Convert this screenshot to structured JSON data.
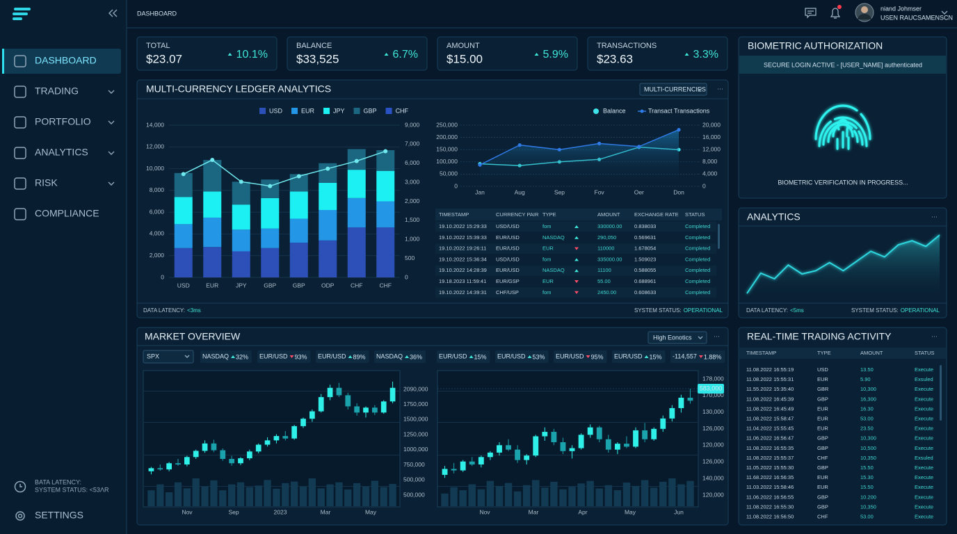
{
  "sidebar": {
    "nav": [
      {
        "label": "DASHBOARD",
        "active": true
      },
      {
        "label": "TRADING",
        "expandable": true
      },
      {
        "label": "PORTFOLIO",
        "expandable": true
      },
      {
        "label": "ANALYTICS",
        "expandable": true
      },
      {
        "label": "RISK",
        "expandable": true
      },
      {
        "label": "COMPLIANCE"
      }
    ],
    "status": [
      "BATA LATENCY:",
      "SYSTEM STATUS: <53ΛR"
    ],
    "settings": "SETTINGS"
  },
  "header": {
    "title": "DASHBOARD",
    "user_name": "niand Johmser",
    "user_role": "USEN RAUCSAMENSCN"
  },
  "kpis": [
    {
      "label": "TOTAL",
      "value": "$23.07",
      "change": "10.1%"
    },
    {
      "label": "BALANCE",
      "value": "$33,525",
      "change": "6.7%"
    },
    {
      "label": "AMOUNT",
      "value": "$15.00",
      "change": "5.9%"
    },
    {
      "label": "TRANSACTIONS",
      "value": "$23.63",
      "change": "3.3%"
    }
  ],
  "ledger": {
    "title": "MULTI-CURRENCY LEDGER ANALYTICS",
    "dropdown": "MULTI-CURRENCIES",
    "bar_chart": {
      "type": "bar",
      "stacked": true,
      "categories": [
        "USD",
        "EUR",
        "JPY",
        "GBP",
        "GBP",
        "ODP",
        "CHF",
        "CHF"
      ],
      "series": [
        {
          "name": "USD",
          "color": "#2c50b8",
          "values": [
            2700,
            2800,
            2400,
            2700,
            3200,
            3400,
            4600,
            4600
          ]
        },
        {
          "name": "EUR",
          "color": "#2496e6",
          "values": [
            2200,
            2700,
            2000,
            1800,
            2200,
            2800,
            2700,
            2400
          ]
        },
        {
          "name": "JPY",
          "color": "#1cf0f2",
          "values": [
            2500,
            2400,
            2300,
            2800,
            2500,
            2500,
            2600,
            2800
          ]
        },
        {
          "name": "GBP",
          "color": "#1b6680",
          "values": [
            2200,
            2900,
            2100,
            1700,
            1600,
            1800,
            1900,
            1900
          ]
        },
        {
          "name": "CHF",
          "color": "#2a52c4",
          "values": [
            null,
            null,
            null,
            null,
            null,
            null,
            null,
            null
          ]
        }
      ],
      "ylim": [
        0,
        14000
      ],
      "yticks": [
        0,
        {
          "value": 2000,
          "label": "2,000"
        },
        {
          "value": 4000,
          "label": "4,000"
        },
        {
          "value": 6000,
          "label": "6,000"
        },
        {
          "value": 8000,
          "label": "8,000"
        },
        {
          "value": 10000,
          "label": "10,000"
        },
        {
          "value": 12000,
          "label": "12,000"
        },
        {
          "value": 14000,
          "label": "14,000"
        }
      ],
      "y2_labels": [
        "9,000",
        "7,000",
        "6,000",
        "3,000",
        "2,000",
        "1,500",
        "1,000",
        "500",
        "0"
      ],
      "line": {
        "color": "#6fe9ee",
        "values": [
          9500,
          10800,
          8800,
          8400,
          9300,
          10000,
          10700,
          11600
        ]
      }
    },
    "line_chart": {
      "type": "line",
      "x": [
        "Jan",
        "Aug",
        "Sep",
        "Fov",
        "Oer",
        "Don"
      ],
      "series": [
        {
          "name": "Balance",
          "color": "#3fe3ea",
          "values": [
            92000,
            85000,
            100000,
            110000,
            160000,
            150000
          ]
        },
        {
          "name": "Transact Transactions",
          "color": "#2f7ae6",
          "axis": "y2",
          "values": [
            7000,
            13500,
            12000,
            14000,
            13000,
            18500
          ]
        }
      ],
      "ylim": [
        0,
        250000
      ],
      "yticks": [
        0,
        {
          "value": 50000,
          "label": "50,000"
        },
        {
          "value": 100000,
          "label": "100,000"
        },
        {
          "value": 150000,
          "label": "150,000"
        },
        {
          "value": 200000,
          "label": "200,000"
        },
        {
          "value": 250000,
          "label": "250,000"
        }
      ],
      "y2lim": [
        0,
        20000
      ],
      "y2ticks": [
        0,
        {
          "value": 4000,
          "label": "4,000"
        },
        {
          "value": 8000,
          "label": "8,000"
        },
        {
          "value": 12000,
          "label": "12,000"
        },
        {
          "value": 16000,
          "label": "16,000"
        },
        {
          "value": 20000,
          "label": "20,000"
        }
      ]
    },
    "table": {
      "columns": [
        "TIMESTAMP",
        "CURRENCY PAIR",
        "TYPE",
        "AMOUNT",
        "EXCHANGE RATE",
        "STATUS"
      ],
      "rows": [
        [
          "19.10.2022 15:29:33",
          "USD/USD",
          "fom",
          "330000.00",
          "0.838033",
          "Completed"
        ],
        [
          "19.10.2022 15:39:33",
          "EUR/USD",
          "NASDAQ",
          "290,050",
          "0.569631",
          "Completed"
        ],
        [
          "19.10.2022 19:26:11",
          "EUR/USD",
          "EUR",
          "110000",
          "1.678054",
          "Completed"
        ],
        [
          "19.10.2022 15:36:34",
          "USD/USD",
          "fom",
          "335000.00",
          "1.509023",
          "Completed"
        ],
        [
          "19.10.2022 14:28:39",
          "EUR/USD",
          "NASDAQ",
          "11100",
          "0.588055",
          "Completed"
        ],
        [
          "19.18.2023 11:59:41",
          "EUR/GSP",
          "EUR",
          "55.00",
          "0.688961",
          "Completed"
        ],
        [
          "19.10.2022 14:39:31",
          "CHF/USP",
          "fom",
          "2450.00",
          "0.608633",
          "Completed"
        ]
      ],
      "directions": [
        "up",
        "up",
        "down",
        "up",
        "up",
        "down",
        "down"
      ]
    },
    "footer": {
      "latency_label": "DATA LATENCY:",
      "latency": "<3ms",
      "status_label": "SYSTEM STATUS:",
      "status": "OPERATIONAL"
    }
  },
  "biometric": {
    "title": "BIOMETRIC AUTHORIZATION",
    "banner": "SECURE LOGIN ACTIVE - [USER_NAME] authenticated",
    "status": "BIOMETRIC VERIFICATION IN PROGRESS..."
  },
  "analytics": {
    "title": "ANALYTICS",
    "chart": {
      "type": "area",
      "color": "#2fd8e0",
      "values": [
        10,
        35,
        28,
        45,
        34,
        38,
        48,
        38,
        50,
        62,
        55,
        70,
        75,
        68,
        82
      ]
    },
    "footer": {
      "latency_label": "DATA LATENCY:",
      "latency": "<5ms",
      "status_label": "SYSTEM STATUS:",
      "status": "OPERATIONAL"
    }
  },
  "market": {
    "title": "MARKET OVERVIEW",
    "dropdown": "High Eonotics",
    "selector": "SPX",
    "tickers": [
      {
        "name": "NASDAQ",
        "change": "32%",
        "dir": "up"
      },
      {
        "name": "EUR/USD",
        "change": "93%",
        "dir": "down"
      },
      {
        "name": "EUR/USD",
        "change": "89%",
        "dir": "up"
      },
      {
        "name": "NASDAQ",
        "change": "36%",
        "dir": "up"
      },
      {
        "name": "EUR/USD",
        "change": "15%",
        "dir": "up"
      },
      {
        "name": "EUR/USD",
        "change": "53%",
        "dir": "up"
      },
      {
        "name": "EUR/USD",
        "change": "95%",
        "dir": "down"
      },
      {
        "name": "EUR/USD",
        "change": "15%",
        "dir": "up"
      },
      {
        "name": "-114,557",
        "change": "1.88%",
        "dir": "down"
      }
    ],
    "charts": [
      {
        "type": "candlestick",
        "ylim": [
          400000,
          2200000
        ],
        "y_labels": [
          "2090,000",
          "1750,000",
          "1500,000",
          "1250,000",
          "1000,000",
          "750,000",
          "500,000",
          "500,000"
        ],
        "x_labels": [
          "Nov",
          "Sep",
          "2023",
          "Mar",
          "May"
        ],
        "ohlc": [
          [
            650000,
            720000,
            600000,
            700000
          ],
          [
            700000,
            760000,
            660000,
            680000
          ],
          [
            680000,
            800000,
            650000,
            780000
          ],
          [
            780000,
            850000,
            740000,
            760000
          ],
          [
            760000,
            900000,
            730000,
            880000
          ],
          [
            880000,
            1000000,
            850000,
            980000
          ],
          [
            980000,
            1150000,
            950000,
            1100000
          ],
          [
            1100000,
            1160000,
            960000,
            990000
          ],
          [
            990000,
            1020000,
            820000,
            850000
          ],
          [
            850000,
            900000,
            740000,
            780000
          ],
          [
            780000,
            880000,
            750000,
            860000
          ],
          [
            860000,
            1000000,
            830000,
            970000
          ],
          [
            970000,
            1100000,
            940000,
            1080000
          ],
          [
            1080000,
            1200000,
            1050000,
            1150000
          ],
          [
            1150000,
            1250000,
            1100000,
            1220000
          ],
          [
            1220000,
            1300000,
            1150000,
            1180000
          ],
          [
            1180000,
            1400000,
            1160000,
            1380000
          ],
          [
            1380000,
            1520000,
            1350000,
            1500000
          ],
          [
            1500000,
            1650000,
            1450000,
            1620000
          ],
          [
            1620000,
            1900000,
            1600000,
            1850000
          ],
          [
            1850000,
            2050000,
            1800000,
            2000000
          ],
          [
            2000000,
            2080000,
            1850000,
            1880000
          ],
          [
            1880000,
            1920000,
            1650000,
            1700000
          ],
          [
            1700000,
            1750000,
            1550000,
            1600000
          ],
          [
            1600000,
            1700000,
            1520000,
            1680000
          ],
          [
            1680000,
            1720000,
            1560000,
            1600000
          ],
          [
            1600000,
            1800000,
            1580000,
            1780000
          ],
          [
            1780000,
            2100000,
            1750000,
            2000000
          ]
        ],
        "volumes": [
          40,
          55,
          35,
          60,
          45,
          70,
          50,
          65,
          40,
          55,
          60,
          48,
          52,
          66,
          44,
          58,
          62,
          50,
          70,
          45,
          55,
          60,
          42,
          58,
          50,
          64,
          48,
          56
        ]
      },
      {
        "type": "candlestick",
        "ylim": [
          110000,
          185000
        ],
        "y_labels": [
          "178,000",
          "170,000",
          "130,000",
          "126,000",
          "120,000",
          "126,000",
          "140,000",
          "120,000"
        ],
        "x_labels": [
          "Nov",
          "Mar",
          "Apr",
          "May",
          "Jun"
        ],
        "price_tag": "583,000",
        "ohlc": [
          [
            118000,
            124000,
            116000,
            122000
          ],
          [
            122000,
            126000,
            119000,
            121000
          ],
          [
            121000,
            128000,
            120000,
            127000
          ],
          [
            127000,
            130000,
            124000,
            125000
          ],
          [
            125000,
            131000,
            123000,
            130000
          ],
          [
            130000,
            134000,
            128000,
            133000
          ],
          [
            133000,
            140000,
            131000,
            138000
          ],
          [
            138000,
            142000,
            134000,
            135000
          ],
          [
            135000,
            138000,
            126000,
            128000
          ],
          [
            128000,
            132000,
            125000,
            131000
          ],
          [
            131000,
            145000,
            130000,
            144000
          ],
          [
            144000,
            150000,
            141000,
            147000
          ],
          [
            147000,
            149000,
            138000,
            140000
          ],
          [
            140000,
            143000,
            132000,
            134000
          ],
          [
            134000,
            138000,
            129000,
            136000
          ],
          [
            136000,
            146000,
            135000,
            145000
          ],
          [
            145000,
            152000,
            143000,
            150000
          ],
          [
            150000,
            151000,
            140000,
            142000
          ],
          [
            142000,
            145000,
            133000,
            135000
          ],
          [
            135000,
            140000,
            132000,
            139000
          ],
          [
            139000,
            144000,
            136000,
            137000
          ],
          [
            137000,
            150000,
            136000,
            148000
          ],
          [
            148000,
            153000,
            140000,
            142000
          ],
          [
            142000,
            150000,
            141000,
            149000
          ],
          [
            149000,
            158000,
            147000,
            156000
          ],
          [
            156000,
            165000,
            154000,
            163000
          ],
          [
            163000,
            172000,
            160000,
            170000
          ],
          [
            170000,
            176000,
            166000,
            168000
          ]
        ],
        "volumes": [
          30,
          45,
          38,
          52,
          40,
          60,
          48,
          55,
          35,
          50,
          62,
          44,
          58,
          40,
          46,
          54,
          60,
          42,
          50,
          38,
          56,
          48,
          62,
          44,
          58,
          66,
          52,
          60
        ]
      }
    ]
  },
  "trading": {
    "title": "REAL-TIME TRADING ACTIVITY",
    "columns": [
      "TIMESTAMP",
      "TYPE",
      "AMOUNT",
      "STATUS"
    ],
    "rows": [
      [
        "11.08.2022 16:55:19",
        "USD",
        "13.50",
        "Execute"
      ],
      [
        "11.08.2022 15:55:31",
        "EUR",
        "5.90",
        "Exsuled"
      ],
      [
        "11.55.2022 15:35:40",
        "GBR",
        "10,300",
        "Execute"
      ],
      [
        "11.08.2022 16:45:39",
        "GBP",
        "16,300",
        "Execute"
      ],
      [
        "11.08.2022 16:45:49",
        "EUR",
        "16.30",
        "Execute"
      ],
      [
        "11.08.2022 15:58:47",
        "EUR",
        "53.00",
        "Execute"
      ],
      [
        "11.04.2022 15:55:45",
        "EUR",
        "23.50",
        "Execute"
      ],
      [
        "11.06.2022 16:56:47",
        "GBP",
        "10,300",
        "Execute"
      ],
      [
        "11.08.2022 16:55:35",
        "GBP",
        "10,500",
        "Execute"
      ],
      [
        "11.08.2022 15:55:37",
        "CHF",
        "10,350",
        "Exsuled"
      ],
      [
        "11.05.2022 15:55:30",
        "GBP",
        "15.50",
        "Execute"
      ],
      [
        "11.68.2022 16:56:35",
        "EUR",
        "15.30",
        "Execute"
      ],
      [
        "11.03.2022 15:58:46",
        "EUR",
        "15.50",
        "Execute"
      ],
      [
        "11.06.2022 16:56:55",
        "GBP",
        "10.200",
        "Execute"
      ],
      [
        "11.08.2022 16:55:30",
        "GBP",
        "10,350",
        "Execute"
      ],
      [
        "11.08.2022 16:56:50",
        "CHF",
        "53.00",
        "Execute"
      ]
    ]
  }
}
